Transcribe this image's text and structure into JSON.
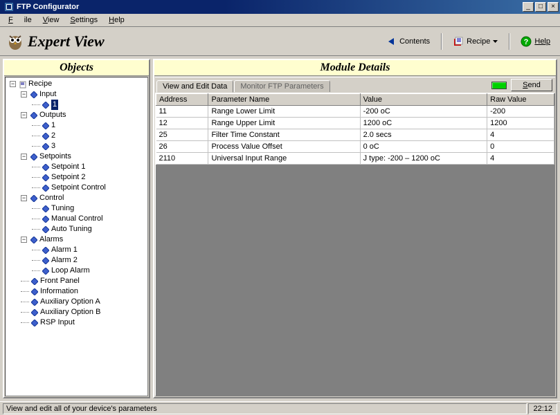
{
  "window": {
    "title": "FTP Configurator"
  },
  "menu": {
    "file": "File",
    "view": "View",
    "settings": "Settings",
    "help": "Help"
  },
  "toolbar": {
    "view_title": "Expert View",
    "contents": "Contents",
    "recipe": "Recipe",
    "help": "Help"
  },
  "panels": {
    "objects": "Objects",
    "module": "Module Details"
  },
  "tree": {
    "root": "Recipe",
    "input": "Input",
    "input_1": "1",
    "outputs": "Outputs",
    "out_1": "1",
    "out_2": "2",
    "out_3": "3",
    "setpoints": "Setpoints",
    "sp1": "Setpoint 1",
    "sp2": "Setpoint 2",
    "spc": "Setpoint Control",
    "control": "Control",
    "tuning": "Tuning",
    "manual": "Manual Control",
    "auto": "Auto Tuning",
    "alarms": "Alarms",
    "a1": "Alarm 1",
    "a2": "Alarm 2",
    "la": "Loop Alarm",
    "front": "Front Panel",
    "info": "Information",
    "aoa": "Auxiliary Option A",
    "aob": "Auxiliary Option B",
    "rsp": "RSP Input"
  },
  "tabs": {
    "t1": "View and Edit Data",
    "t2": "Monitor FTP Parameters"
  },
  "send": "Send",
  "columns": {
    "c1": "Address",
    "c2": "Parameter Name",
    "c3": "Value",
    "c4": "Raw Value"
  },
  "rows": [
    {
      "addr": "11",
      "name": "Range Lower Limit",
      "val": "-200 oC",
      "raw": "-200"
    },
    {
      "addr": "12",
      "name": "Range Upper Limit",
      "val": "1200 oC",
      "raw": "1200"
    },
    {
      "addr": "25",
      "name": "Filter Time Constant",
      "val": "2.0 secs",
      "raw": "4"
    },
    {
      "addr": "26",
      "name": "Process Value Offset",
      "val": "0 oC",
      "raw": "0"
    },
    {
      "addr": "2110",
      "name": "Universal Input Range",
      "val": "J type:  -200 – 1200 oC",
      "raw": "4"
    }
  ],
  "status": {
    "text": "View and edit all of your device's parameters",
    "clock": "22:12"
  },
  "colors": {
    "col_addr_w": 74,
    "col_name_w": 215,
    "col_val_w": 180,
    "col_raw_w": 95
  }
}
